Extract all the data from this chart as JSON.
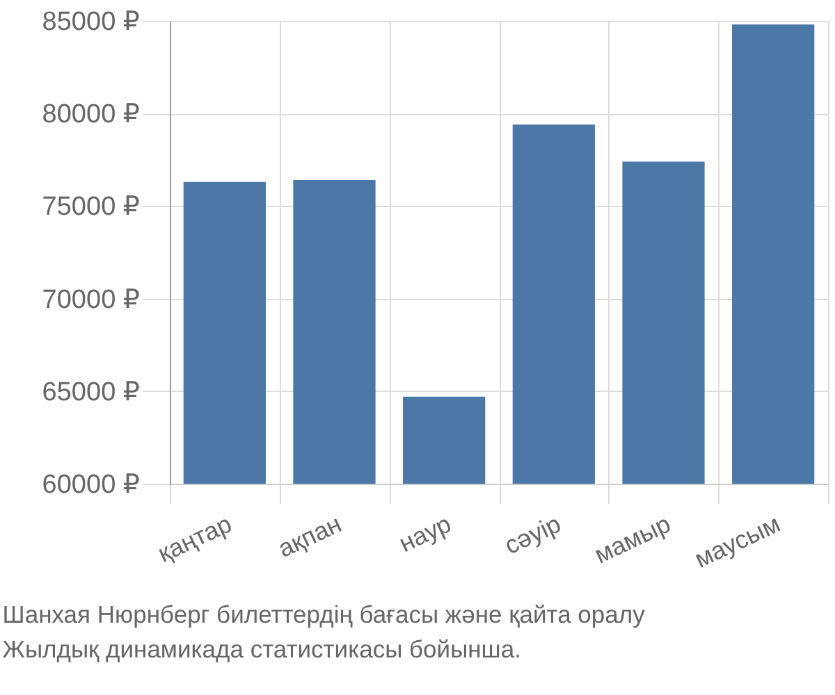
{
  "chart_data": {
    "type": "bar",
    "categories": [
      "қаңтар",
      "ақпан",
      "наур",
      "сәуір",
      "мамыр",
      "маусым"
    ],
    "values": [
      76300,
      76400,
      64700,
      79400,
      77400,
      84800
    ],
    "color": "#4c78a8",
    "ylim": [
      60000,
      85000
    ],
    "yticks": [
      {
        "value": 60000,
        "label": "60000 ₽"
      },
      {
        "value": 65000,
        "label": "65000 ₽"
      },
      {
        "value": 70000,
        "label": "70000 ₽"
      },
      {
        "value": 75000,
        "label": "75000 ₽"
      },
      {
        "value": 80000,
        "label": "80000 ₽"
      },
      {
        "value": 85000,
        "label": "85000 ₽"
      }
    ],
    "grid": true,
    "annotations": [
      "Шанхая Нюрнберг билеттердің бағасы және қайта оралу",
      "Жылдық динамикада статистикасы бойынша."
    ]
  }
}
